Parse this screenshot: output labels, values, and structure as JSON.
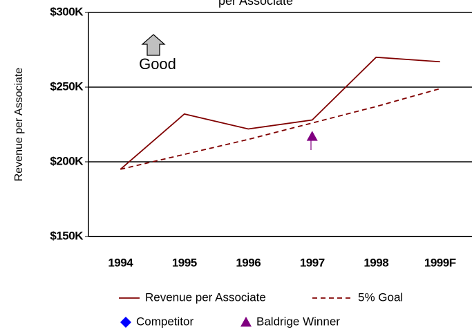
{
  "chart_data": {
    "type": "line",
    "title": "per Associate",
    "y_label": "Revenue per Associate",
    "annotation": "Good",
    "categories": [
      "1994",
      "1995",
      "1996",
      "1997",
      "1998",
      "1999F"
    ],
    "series": [
      {
        "name": "Revenue per Associate",
        "color": "#800000",
        "line": "solid",
        "values": [
          195,
          232,
          222,
          228,
          270,
          267
        ]
      },
      {
        "name": "5% Goal",
        "color": "#800000",
        "line": "dashed",
        "values": [
          195,
          205,
          215,
          226,
          237,
          249
        ]
      },
      {
        "name": "Competitor",
        "color": "#0000ff",
        "marker": "diamond",
        "values": [
          null,
          null,
          null,
          null,
          null,
          null
        ]
      },
      {
        "name": "Baldrige Winner",
        "color": "#800080",
        "marker": "triangle",
        "values": [
          null,
          null,
          null,
          217,
          null,
          null
        ]
      }
    ],
    "ylim": [
      150,
      300
    ],
    "yticks": [
      {
        "value": 150,
        "label": "$150K"
      },
      {
        "value": 200,
        "label": "$200K"
      },
      {
        "value": 250,
        "label": "$250K"
      },
      {
        "value": 300,
        "label": "$300K"
      }
    ],
    "grid": true
  }
}
